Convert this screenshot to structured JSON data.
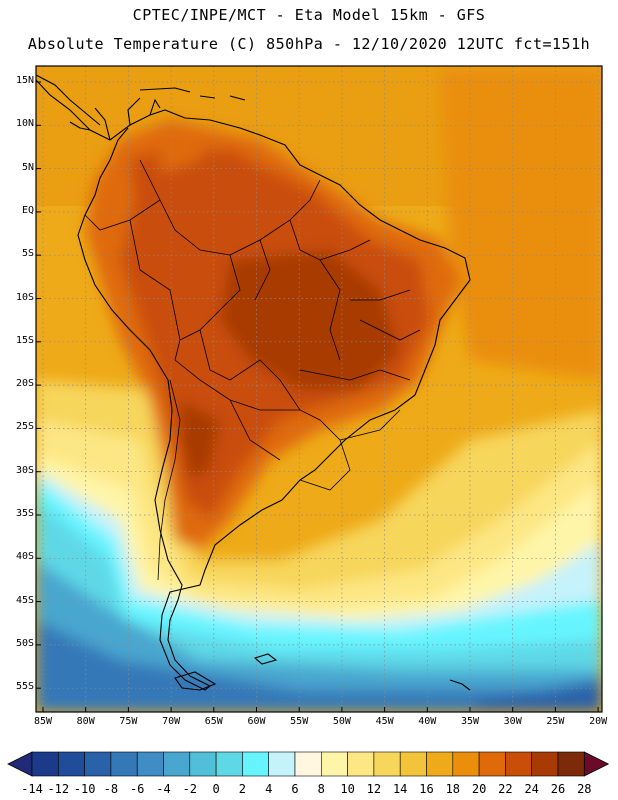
{
  "title_line1": "CPTEC/INPE/MCT -  Eta Model 15km - GFS",
  "title_line2": "Absolute Temperature (C) 850hPa - 12/10/2020 12UTC fct=151h",
  "lat_labels": [
    "15N",
    "10N",
    "5N",
    "EQ",
    "5S",
    "10S",
    "15S",
    "20S",
    "25S",
    "30S",
    "35S",
    "40S",
    "45S",
    "50S",
    "55S"
  ],
  "lon_labels": [
    "85W",
    "80W",
    "75W",
    "70W",
    "65W",
    "60W",
    "55W",
    "50W",
    "45W",
    "40W",
    "35W",
    "30W",
    "25W",
    "20W"
  ],
  "colorbar": {
    "labels": [
      "-14",
      "-12",
      "-10",
      "-8",
      "-6",
      "-4",
      "-2",
      "0",
      "2",
      "4",
      "6",
      "8",
      "10",
      "12",
      "14",
      "16",
      "18",
      "20",
      "22",
      "24",
      "26",
      "28"
    ],
    "colors": [
      "#1b3a8a",
      "#214c9a",
      "#2a62aa",
      "#3478b8",
      "#3f8dc4",
      "#48a6cf",
      "#52bfd9",
      "#5fd8e6",
      "#66f5ff",
      "#c6f2fb",
      "#fff7df",
      "#fff5a8",
      "#fde784",
      "#f7d65c",
      "#f2c43a",
      "#eeaa18",
      "#ea8e0c",
      "#df6a0a",
      "#c94e08",
      "#a83a05",
      "#7c2a09"
    ],
    "low_color": "#222a78",
    "high_color": "#6c0a2a"
  }
}
